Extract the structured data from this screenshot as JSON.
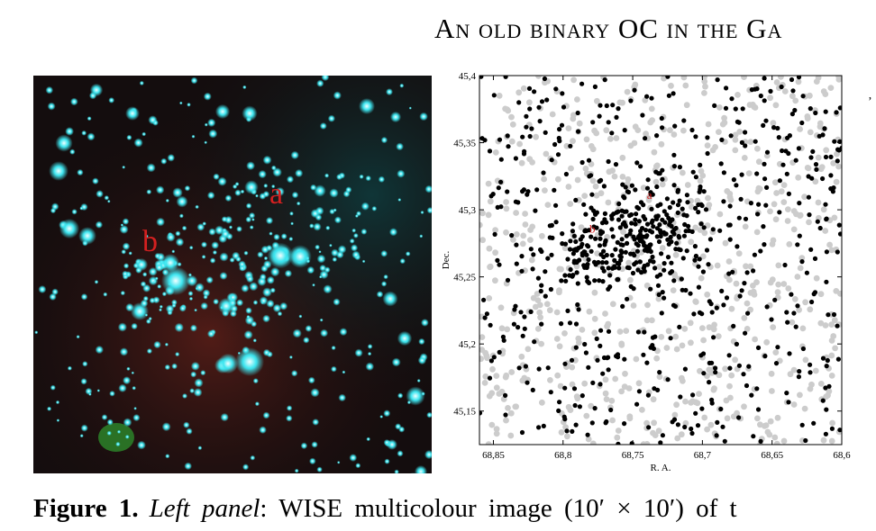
{
  "running_head": "An old binary OC in the Ga",
  "left_panel": {
    "markers": [
      {
        "label": "a",
        "color": "#d42020"
      },
      {
        "label": "b",
        "color": "#d42020"
      }
    ],
    "colors": {
      "background": "#140d0e",
      "star": "#3ee6f0",
      "core": "#f2ffff",
      "red_nebula": "#5a1e18",
      "green_blob": "#2d8a2a"
    }
  },
  "chart_data": {
    "type": "scatter",
    "xlabel": "R. A.",
    "ylabel": "Dec.",
    "xlim": [
      68.86,
      68.6
    ],
    "ylim": [
      45.125,
      45.4
    ],
    "x_ticks": [
      "68,85",
      "68,8",
      "68,75",
      "68,7",
      "68,65",
      "68,6"
    ],
    "x_tick_values": [
      68.85,
      68.8,
      68.75,
      68.7,
      68.65,
      68.6
    ],
    "y_ticks": [
      "45,4",
      "45,35",
      "45,3",
      "45,25",
      "45,2",
      "45,15"
    ],
    "y_tick_values": [
      45.4,
      45.35,
      45.3,
      45.25,
      45.2,
      45.15
    ],
    "annotations": [
      {
        "label": "a",
        "x": 68.738,
        "y": 45.308,
        "color": "#d42020"
      },
      {
        "label": "b",
        "x": 68.779,
        "y": 45.283,
        "color": "#d42020"
      }
    ],
    "series": [
      {
        "color": "#000000",
        "count": 800,
        "cluster_centers": [
          {
            "x": 68.737,
            "y": 45.285
          },
          {
            "x": 68.778,
            "y": 45.272
          }
        ]
      },
      {
        "color": "#cccccc",
        "count": 650
      }
    ]
  },
  "caption": {
    "figure_label": "Figure 1.",
    "panel_label": "Left panel",
    "rest": ":  WISE multicolour image (10′ × 10′) of t"
  },
  "edge_mark": "’"
}
